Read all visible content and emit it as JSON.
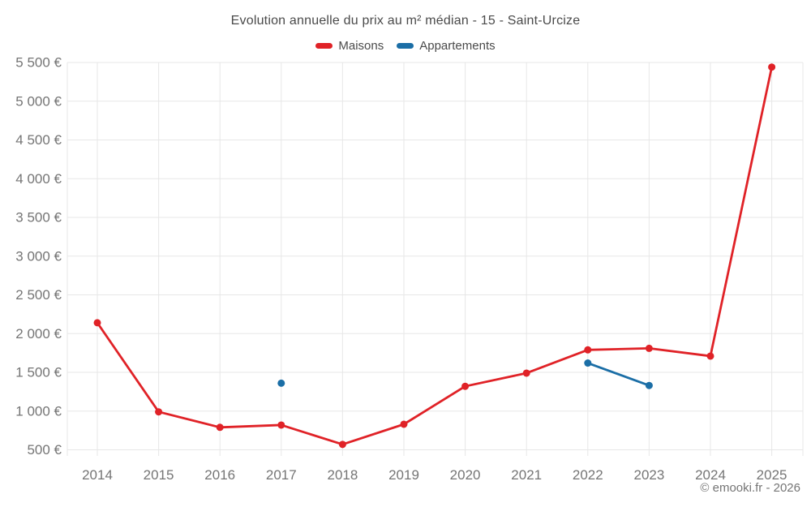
{
  "chart_data": {
    "type": "line",
    "title": "Evolution annuelle du prix au m² médian - 15 - Saint-Urcize",
    "x_categories": [
      "2014",
      "2015",
      "2016",
      "2017",
      "2018",
      "2019",
      "2020",
      "2021",
      "2022",
      "2023",
      "2024",
      "2025"
    ],
    "series": [
      {
        "name": "Maisons",
        "color": "#e02227",
        "values": [
          2140,
          990,
          790,
          820,
          570,
          830,
          1320,
          1490,
          1790,
          1810,
          1710,
          5440
        ]
      },
      {
        "name": "Appartements",
        "color": "#1b6ea6",
        "values": [
          null,
          null,
          null,
          1360,
          null,
          null,
          null,
          null,
          1620,
          1330,
          null,
          null
        ]
      }
    ],
    "ylim": [
      500,
      5500
    ],
    "ytick_step": 500,
    "ytick_suffix": " €",
    "grid": true,
    "legend_position": "top",
    "marker": "circle"
  },
  "footer": {
    "copyright": "© emooki.fr - 2026"
  },
  "style": {
    "background": "#ffffff",
    "grid_color": "#e7e7e7",
    "tick_label_color": "#757575",
    "title_color": "#4a4a4a",
    "legend_text_color": "#4a4a4a"
  }
}
